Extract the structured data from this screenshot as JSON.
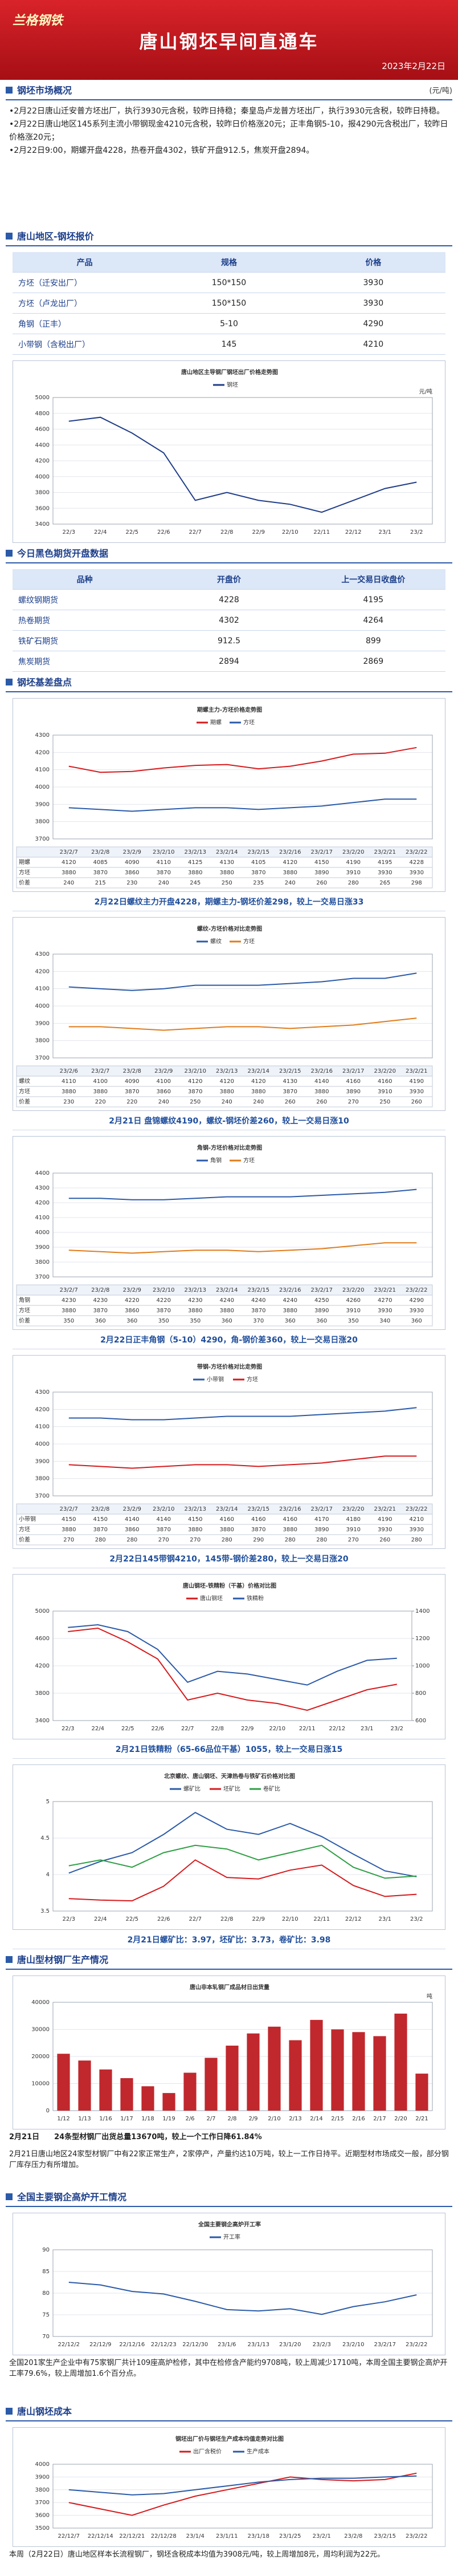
{
  "header": {
    "logo": "兰格钢铁",
    "title": "唐山钢坯早间直通车",
    "date": "2023年2月22日"
  },
  "market": {
    "title": "钢坯市场概况",
    "unit": "(元/吨)",
    "bullets": [
      "•2月22日唐山迁安普方坯出厂，执行3930元含税，较昨日持稳；秦皇岛卢龙普方坯出厂，执行3930元含税，较昨日持稳。",
      "•2月22日唐山地区145系列主流小带钢现金4210元含税，较昨日价格涨20元；正丰角钢5-10，报4290元含税出厂，较昨日价格涨20元；",
      "•2月22日9:00，期螺开盘4228，热卷开盘4302，铁矿开盘912.5，焦炭开盘2894。"
    ]
  },
  "quote": {
    "title": "唐山地区-钢坯报价",
    "header": [
      "产品",
      "规格",
      "价格"
    ],
    "rows": [
      [
        "方坯（迁安出厂）",
        "150*150",
        3930
      ],
      [
        "方坯（卢龙出厂）",
        "150*150",
        3930
      ],
      [
        "角钢（正丰）",
        "5-10",
        4290
      ],
      [
        "小带钢（含税出厂）",
        "145",
        4210
      ]
    ]
  },
  "futures": {
    "title": "今日黑色期货开盘数据",
    "header": [
      "品种",
      "开盘价",
      "上一交易日收盘价"
    ],
    "rows": [
      [
        "螺纹钢期货",
        4228,
        4195
      ],
      [
        "热卷期货",
        4302,
        4264
      ],
      [
        "铁矿石期货",
        912.5,
        899
      ],
      [
        "焦炭期货",
        2894,
        2869
      ]
    ]
  },
  "basis": {
    "title": "钢坯基差盘点"
  },
  "profile": {
    "title": "唐山型材钢厂生产情况",
    "lead": "2月21日　　24条型材钢厂出货总量13670吨，较上一个工作日降61.84%",
    "text": "2月21日唐山地区24家型材钢厂中有22家正常生产，2家停产，产量约达10万吨，较上一工作日持平。近期型材市场成交一般，部分钢厂库存压力有所增加。"
  },
  "furnace": {
    "title": "全国主要钢企高炉开工情况",
    "text": "全国201家生产企业中有75家钢厂共计109座高炉检修，其中在检修含产能约9708吨，较上周减少1710吨，本周全国主要钢企高炉开工率79.6%，较上周增加1.6个百分点。"
  },
  "cost": {
    "title": "唐山钢坯成本",
    "text": "本周（2月22日）唐山地区样本长流程钢厂，钢坯含税成本均值为3908元/吨，较上周增加8元，周均利润为22元。"
  },
  "chart_data": [
    {
      "type": "line",
      "title": "唐山地区主导钢厂钢坯出厂价格走势图",
      "unit": "元/吨",
      "grid": true,
      "categories": [
        "22/3",
        "22/4",
        "22/5",
        "22/6",
        "22/7",
        "22/8",
        "22/9",
        "22/10",
        "22/11",
        "22/12",
        "23/1",
        "23/2"
      ],
      "series": [
        {
          "name": "钢坯",
          "color": "#1f3c88",
          "values": [
            4700,
            4750,
            4550,
            4300,
            3700,
            3800,
            3700,
            3650,
            3550,
            3700,
            3850,
            3930
          ]
        }
      ],
      "ylim": [
        3400,
        5000
      ],
      "yticks": [
        3400,
        3600,
        3800,
        4000,
        4200,
        4400,
        4600,
        4800,
        5000
      ]
    },
    {
      "type": "line",
      "title": "期螺主力-方坯价格走势图",
      "grid": true,
      "data_table": true,
      "categories": [
        "23/2/7",
        "23/2/8",
        "23/2/9",
        "23/2/10",
        "23/2/13",
        "23/2/14",
        "23/2/15",
        "23/2/16",
        "23/2/17",
        "23/2/20",
        "23/2/21",
        "23/2/22"
      ],
      "series": [
        {
          "name": "期螺",
          "color": "#d7191c",
          "values": [
            4120,
            4085,
            4090,
            4110,
            4125,
            4130,
            4105,
            4120,
            4150,
            4190,
            4195,
            4228
          ]
        },
        {
          "name": "方坯",
          "color": "#2b5aa8",
          "values": [
            3880,
            3870,
            3860,
            3870,
            3880,
            3880,
            3870,
            3880,
            3890,
            3910,
            3930,
            3930
          ]
        }
      ],
      "table_rows": [
        {
          "name": "价差",
          "values": [
            240,
            215,
            230,
            240,
            245,
            250,
            235,
            240,
            260,
            280,
            265,
            298
          ]
        }
      ],
      "ylim": [
        3700,
        4300
      ],
      "yticks": [
        3700,
        3800,
        3900,
        4000,
        4100,
        4200,
        4300
      ],
      "note": "2月22日螺纹主力开盘4228，期螺主力-钢坯价差298，较上一交易日涨33"
    },
    {
      "type": "line",
      "title": "螺纹-方坯价格对比走势图",
      "grid": true,
      "data_table": true,
      "categories": [
        "23/2/6",
        "23/2/7",
        "23/2/8",
        "23/2/9",
        "23/2/10",
        "23/2/13",
        "23/2/14",
        "23/2/15",
        "23/2/16",
        "23/2/17",
        "23/2/20",
        "23/2/21"
      ],
      "series": [
        {
          "name": "螺纹",
          "color": "#2b5aa8",
          "values": [
            4110,
            4100,
            4090,
            4100,
            4120,
            4120,
            4120,
            4130,
            4140,
            4160,
            4160,
            4190
          ]
        },
        {
          "name": "方坯",
          "color": "#e07b1a",
          "values": [
            3880,
            3880,
            3870,
            3860,
            3870,
            3880,
            3880,
            3870,
            3880,
            3890,
            3910,
            3930
          ]
        }
      ],
      "table_rows": [
        {
          "name": "价差",
          "values": [
            230,
            220,
            220,
            240,
            250,
            240,
            240,
            260,
            260,
            270,
            250,
            260
          ]
        }
      ],
      "ylim": [
        3700,
        4300
      ],
      "yticks": [
        3700,
        3800,
        3900,
        4000,
        4100,
        4200,
        4300
      ],
      "note": "2月21日 盘锦螺纹4190，螺纹-钢坯价差260，较上一交易日涨10"
    },
    {
      "type": "line",
      "title": "角钢-方坯价格对比走势图",
      "grid": true,
      "data_table": true,
      "categories": [
        "23/2/7",
        "23/2/8",
        "23/2/9",
        "23/2/10",
        "23/2/13",
        "23/2/14",
        "23/2/15",
        "23/2/16",
        "23/2/17",
        "23/2/20",
        "23/2/21",
        "23/2/22"
      ],
      "series": [
        {
          "name": "角钢",
          "color": "#2b5aa8",
          "values": [
            4230,
            4230,
            4220,
            4220,
            4230,
            4240,
            4240,
            4240,
            4250,
            4260,
            4270,
            4290
          ]
        },
        {
          "name": "方坯",
          "color": "#e07b1a",
          "values": [
            3880,
            3870,
            3860,
            3870,
            3880,
            3880,
            3870,
            3880,
            3890,
            3910,
            3930,
            3930
          ]
        }
      ],
      "table_rows": [
        {
          "name": "价差",
          "values": [
            350,
            360,
            360,
            350,
            350,
            360,
            370,
            360,
            360,
            350,
            340,
            360
          ]
        }
      ],
      "ylim": [
        3700,
        4400
      ],
      "yticks": [
        3700,
        3800,
        3900,
        4000,
        4100,
        4200,
        4300,
        4400
      ],
      "note": "2月22日正丰角钢（5-10）4290，角-钢价差360，较上一交易日涨20"
    },
    {
      "type": "line",
      "title": "带钢-方坯价格对比走势图",
      "grid": true,
      "data_table": true,
      "categories": [
        "23/2/7",
        "23/2/8",
        "23/2/9",
        "23/2/10",
        "23/2/13",
        "23/2/14",
        "23/2/15",
        "23/2/16",
        "23/2/17",
        "23/2/20",
        "23/2/21",
        "23/2/22"
      ],
      "series": [
        {
          "name": "小带钢",
          "color": "#2b5aa8",
          "values": [
            4150,
            4150,
            4140,
            4140,
            4150,
            4160,
            4160,
            4160,
            4170,
            4180,
            4190,
            4210
          ]
        },
        {
          "name": "方坯",
          "color": "#d7191c",
          "values": [
            3880,
            3870,
            3860,
            3870,
            3880,
            3880,
            3870,
            3880,
            3890,
            3910,
            3930,
            3930
          ]
        }
      ],
      "table_rows": [
        {
          "name": "价差",
          "values": [
            270,
            280,
            280,
            270,
            270,
            280,
            290,
            280,
            280,
            270,
            260,
            280
          ]
        }
      ],
      "ylim": [
        3700,
        4300
      ],
      "yticks": [
        3700,
        3800,
        3900,
        4000,
        4100,
        4200,
        4300
      ],
      "note": "2月22日145带钢4210，145带-钢价差280，较上一交易日涨20"
    },
    {
      "type": "line",
      "title": "唐山钢坯-铁精粉（干基）价格对比图",
      "grid": true,
      "categories": [
        "22/3",
        "22/4",
        "22/5",
        "22/6",
        "22/7",
        "22/8",
        "22/9",
        "22/10",
        "22/11",
        "22/12",
        "23/1",
        "23/2"
      ],
      "series": [
        {
          "name": "唐山钢坯",
          "color": "#d7191c",
          "values": [
            4700,
            4750,
            4550,
            4300,
            3700,
            3800,
            3700,
            3650,
            3550,
            3700,
            3850,
            3930
          ]
        },
        {
          "name": "铁精粉",
          "color": "#2b5aa8",
          "axis": "y2",
          "values": [
            1280,
            1300,
            1250,
            1120,
            880,
            960,
            940,
            900,
            860,
            960,
            1040,
            1055
          ]
        }
      ],
      "ylim": [
        3400,
        5000
      ],
      "yticks": [
        3400,
        3800,
        4200,
        4600,
        5000
      ],
      "y2lim": [
        600,
        1400
      ],
      "y2ticks": [
        600,
        800,
        1000,
        1200,
        1400
      ],
      "note": "2月21日铁精粉（65-66品位干基）1055，较上一交易日涨15"
    },
    {
      "type": "line",
      "title": "北京螺纹、唐山钢坯、天津热卷与铁矿石价格对比图",
      "grid": true,
      "categories": [
        "22/3",
        "22/4",
        "22/5",
        "22/6",
        "22/7",
        "22/8",
        "22/9",
        "22/10",
        "22/11",
        "22/12",
        "23/1",
        "23/2"
      ],
      "series": [
        {
          "name": "螺矿比",
          "color": "#2b5aa8",
          "values": [
            4.02,
            4.18,
            4.3,
            4.55,
            4.85,
            4.62,
            4.55,
            4.7,
            4.52,
            4.28,
            4.05,
            3.97
          ]
        },
        {
          "name": "坯矿比",
          "color": "#d7191c",
          "values": [
            3.67,
            3.65,
            3.64,
            3.84,
            4.2,
            3.96,
            3.94,
            4.06,
            4.13,
            3.85,
            3.7,
            3.73
          ]
        },
        {
          "name": "卷矿比",
          "color": "#2e9e44",
          "values": [
            4.12,
            4.2,
            4.1,
            4.3,
            4.4,
            4.35,
            4.2,
            4.3,
            4.4,
            4.1,
            3.95,
            3.98
          ]
        }
      ],
      "ylim": [
        3.5,
        5
      ],
      "yticks": [
        3.5,
        4,
        4.5,
        5
      ],
      "note": "2月21日螺矿比：3.97，坯矿比：3.73，卷矿比：3.98"
    },
    {
      "type": "bar",
      "title": "唐山非本轧钢厂成品材日出货量",
      "unit": "吨",
      "grid": true,
      "color": "#c0282d",
      "categories": [
        "1/12",
        "1/13",
        "1/16",
        "1/17",
        "1/18",
        "1/19",
        "2/6",
        "2/7",
        "2/8",
        "2/9",
        "2/10",
        "2/13",
        "2/14",
        "2/15",
        "2/16",
        "2/17",
        "2/20",
        "2/21"
      ],
      "values": [
        21000,
        18500,
        15200,
        12000,
        9000,
        6500,
        14000,
        19500,
        24000,
        28500,
        31000,
        26000,
        33500,
        30000,
        29000,
        27500,
        35820,
        13670
      ],
      "ylim": [
        0,
        40000
      ],
      "yticks": [
        0,
        10000,
        20000,
        30000,
        40000
      ]
    },
    {
      "type": "line",
      "title": "全国主要钢企高炉开工率",
      "grid": true,
      "categories": [
        "22/12/2",
        "22/12/9",
        "22/12/16",
        "22/12/23",
        "22/12/30",
        "23/1/6",
        "23/1/13",
        "23/1/20",
        "23/2/3",
        "23/2/10",
        "23/2/17",
        "23/2/22"
      ],
      "series": [
        {
          "name": "开工率",
          "color": "#2b5aa8",
          "values": [
            82.5,
            81.9,
            80.4,
            79.8,
            78.1,
            76.2,
            75.9,
            76.4,
            75.1,
            76.9,
            78.0,
            79.6
          ]
        }
      ],
      "ylim": [
        70,
        90
      ],
      "yticks": [
        70,
        75,
        80,
        85,
        90
      ]
    },
    {
      "type": "line",
      "title": "钢坯出厂价与钢坯生产成本均值走势对比图",
      "grid": true,
      "categories": [
        "22/12/7",
        "22/12/14",
        "22/12/21",
        "22/12/28",
        "23/1/4",
        "23/1/11",
        "23/1/18",
        "23/1/25",
        "23/2/1",
        "23/2/8",
        "23/2/15",
        "23/2/22"
      ],
      "series": [
        {
          "name": "出厂含税价",
          "color": "#d7191c",
          "values": [
            3700,
            3650,
            3600,
            3680,
            3750,
            3800,
            3850,
            3900,
            3880,
            3870,
            3880,
            3930
          ]
        },
        {
          "name": "生产成本",
          "color": "#2b5aa8",
          "values": [
            3800,
            3780,
            3760,
            3770,
            3800,
            3830,
            3860,
            3880,
            3890,
            3890,
            3900,
            3908
          ]
        }
      ],
      "ylim": [
        3500,
        4000
      ],
      "yticks": [
        3500,
        3600,
        3700,
        3800,
        3900,
        4000
      ]
    }
  ]
}
